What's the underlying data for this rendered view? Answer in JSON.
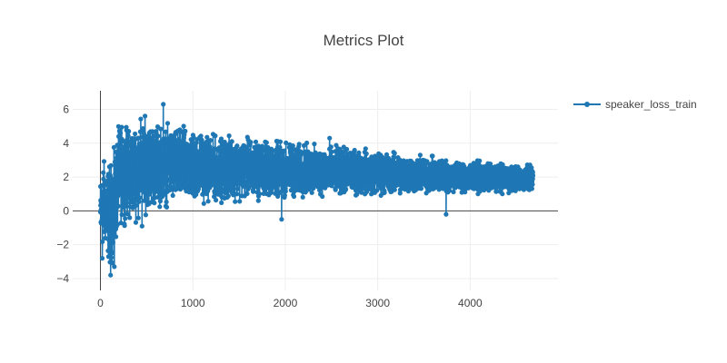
{
  "chart_data": {
    "type": "line",
    "title": "Metrics Plot",
    "xlabel": "",
    "ylabel": "",
    "xlim": [
      -300,
      4950
    ],
    "ylim": [
      -4.7,
      7.1
    ],
    "x_ticks": [
      0,
      1000,
      2000,
      3000,
      4000
    ],
    "x_tick_labels": [
      "0",
      "1000",
      "2000",
      "3000",
      "4000"
    ],
    "y_ticks": [
      -4,
      -2,
      0,
      2,
      4,
      6
    ],
    "y_tick_labels": [
      "−4",
      "−2",
      "0",
      "2",
      "4",
      "6"
    ],
    "grid": true,
    "legend_position": "top-right",
    "marker": "circle",
    "color": "#1f77b4",
    "series": [
      {
        "name": "speaker_loss_train",
        "x_range": [
          0,
          4680
        ],
        "num_points": 4680,
        "envelope": {
          "x": [
            0,
            30,
            60,
            100,
            150,
            200,
            300,
            400,
            500,
            600,
            700,
            800,
            1000,
            1200,
            1500,
            2000,
            2500,
            3000,
            3500,
            4000,
            4500,
            4680
          ],
          "upper": [
            2.3,
            3.5,
            3.0,
            3.2,
            3.8,
            5.4,
            5.3,
            5.7,
            5.8,
            5.4,
            5.2,
            5.2,
            5.0,
            4.6,
            4.5,
            4.2,
            3.9,
            3.7,
            3.3,
            3.0,
            2.8,
            2.7
          ],
          "lower": [
            -2.8,
            -2.6,
            -2.5,
            -3.8,
            -3.2,
            -1.0,
            -0.8,
            -0.7,
            -0.2,
            0.0,
            0.1,
            0.2,
            0.3,
            0.4,
            0.5,
            0.6,
            0.8,
            0.8,
            0.9,
            1.0,
            1.0,
            1.1
          ]
        },
        "outliers": [
          {
            "x": 680,
            "y": 6.3
          },
          {
            "x": 110,
            "y": -3.8
          },
          {
            "x": 150,
            "y": -3.3
          },
          {
            "x": 20,
            "y": -2.8
          },
          {
            "x": 1960,
            "y": -0.5
          },
          {
            "x": 3740,
            "y": -0.2
          },
          {
            "x": 2480,
            "y": 4.3
          },
          {
            "x": 450,
            "y": -0.9
          }
        ]
      }
    ]
  }
}
